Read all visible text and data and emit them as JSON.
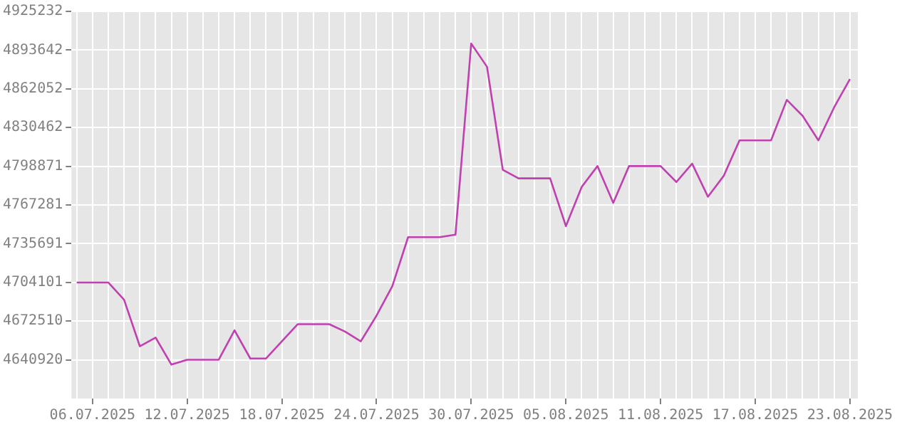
{
  "chart_data": {
    "type": "line",
    "x": [
      "2025-07-05",
      "2025-07-06",
      "2025-07-07",
      "2025-07-08",
      "2025-07-09",
      "2025-07-10",
      "2025-07-11",
      "2025-07-12",
      "2025-07-13",
      "2025-07-14",
      "2025-07-15",
      "2025-07-16",
      "2025-07-17",
      "2025-07-18",
      "2025-07-19",
      "2025-07-20",
      "2025-07-21",
      "2025-07-22",
      "2025-07-23",
      "2025-07-24",
      "2025-07-25",
      "2025-07-26",
      "2025-07-27",
      "2025-07-28",
      "2025-07-29",
      "2025-07-30",
      "2025-07-31",
      "2025-08-01",
      "2025-08-02",
      "2025-08-03",
      "2025-08-04",
      "2025-08-05",
      "2025-08-06",
      "2025-08-07",
      "2025-08-08",
      "2025-08-09",
      "2025-08-10",
      "2025-08-11",
      "2025-08-12",
      "2025-08-13",
      "2025-08-14",
      "2025-08-15",
      "2025-08-16",
      "2025-08-17",
      "2025-08-18",
      "2025-08-19",
      "2025-08-20",
      "2025-08-21",
      "2025-08-22",
      "2025-08-23"
    ],
    "series": [
      {
        "color": "#c040b0",
        "values": [
          4704000,
          4704000,
          4704000,
          4690000,
          4652000,
          4659000,
          4637000,
          4641000,
          4641000,
          4641000,
          4665000,
          4642000,
          4642000,
          4656000,
          4670000,
          4670000,
          4670000,
          4664000,
          4656000,
          4677000,
          4701000,
          4741000,
          4741000,
          4741000,
          4743000,
          4899000,
          4880000,
          4796000,
          4789000,
          4789000,
          4789000,
          4750000,
          4782000,
          4799000,
          4769000,
          4799000,
          4799000,
          4799000,
          4786000,
          4801000,
          4774000,
          4791000,
          4820000,
          4820000,
          4820000,
          4853000,
          4840000,
          4820000,
          4847000,
          4870000
        ]
      }
    ],
    "xlim": [
      "2025-07-04T16:00",
      "2025-08-23T12:00"
    ],
    "xticks": [
      {
        "value": "2025-07-05",
        "label": null
      },
      {
        "value": "2025-07-06",
        "label": "06.07.2025"
      },
      {
        "value": "2025-07-07",
        "label": null
      },
      {
        "value": "2025-07-08",
        "label": null
      },
      {
        "value": "2025-07-09",
        "label": null
      },
      {
        "value": "2025-07-10",
        "label": null
      },
      {
        "value": "2025-07-11",
        "label": null
      },
      {
        "value": "2025-07-12",
        "label": "12.07.2025"
      },
      {
        "value": "2025-07-13",
        "label": null
      },
      {
        "value": "2025-07-14",
        "label": null
      },
      {
        "value": "2025-07-15",
        "label": null
      },
      {
        "value": "2025-07-16",
        "label": null
      },
      {
        "value": "2025-07-17",
        "label": null
      },
      {
        "value": "2025-07-18",
        "label": "18.07.2025"
      },
      {
        "value": "2025-07-19",
        "label": null
      },
      {
        "value": "2025-07-20",
        "label": null
      },
      {
        "value": "2025-07-21",
        "label": null
      },
      {
        "value": "2025-07-22",
        "label": null
      },
      {
        "value": "2025-07-23",
        "label": null
      },
      {
        "value": "2025-07-24",
        "label": "24.07.2025"
      },
      {
        "value": "2025-07-25",
        "label": null
      },
      {
        "value": "2025-07-26",
        "label": null
      },
      {
        "value": "2025-07-27",
        "label": null
      },
      {
        "value": "2025-07-28",
        "label": null
      },
      {
        "value": "2025-07-29",
        "label": null
      },
      {
        "value": "2025-07-30",
        "label": "30.07.2025"
      },
      {
        "value": "2025-07-31",
        "label": null
      },
      {
        "value": "2025-08-01",
        "label": null
      },
      {
        "value": "2025-08-02",
        "label": null
      },
      {
        "value": "2025-08-03",
        "label": null
      },
      {
        "value": "2025-08-04",
        "label": null
      },
      {
        "value": "2025-08-05",
        "label": "05.08.2025"
      },
      {
        "value": "2025-08-06",
        "label": null
      },
      {
        "value": "2025-08-07",
        "label": null
      },
      {
        "value": "2025-08-08",
        "label": null
      },
      {
        "value": "2025-08-09",
        "label": null
      },
      {
        "value": "2025-08-10",
        "label": null
      },
      {
        "value": "2025-08-11",
        "label": "11.08.2025"
      },
      {
        "value": "2025-08-12",
        "label": null
      },
      {
        "value": "2025-08-13",
        "label": null
      },
      {
        "value": "2025-08-14",
        "label": null
      },
      {
        "value": "2025-08-15",
        "label": null
      },
      {
        "value": "2025-08-16",
        "label": null
      },
      {
        "value": "2025-08-17",
        "label": "17.08.2025"
      },
      {
        "value": "2025-08-18",
        "label": null
      },
      {
        "value": "2025-08-19",
        "label": null
      },
      {
        "value": "2025-08-20",
        "label": null
      },
      {
        "value": "2025-08-21",
        "label": null
      },
      {
        "value": "2025-08-22",
        "label": null
      },
      {
        "value": "2025-08-23",
        "label": "23.08.2025"
      }
    ],
    "ylim": [
      4609330,
      4925232
    ],
    "yticks": [
      4640920,
      4672510,
      4704101,
      4735691,
      4767281,
      4798871,
      4830462,
      4862052,
      4893642,
      4925232
    ],
    "grid": true,
    "legend": false,
    "marker": "none",
    "line_style": "solid"
  }
}
